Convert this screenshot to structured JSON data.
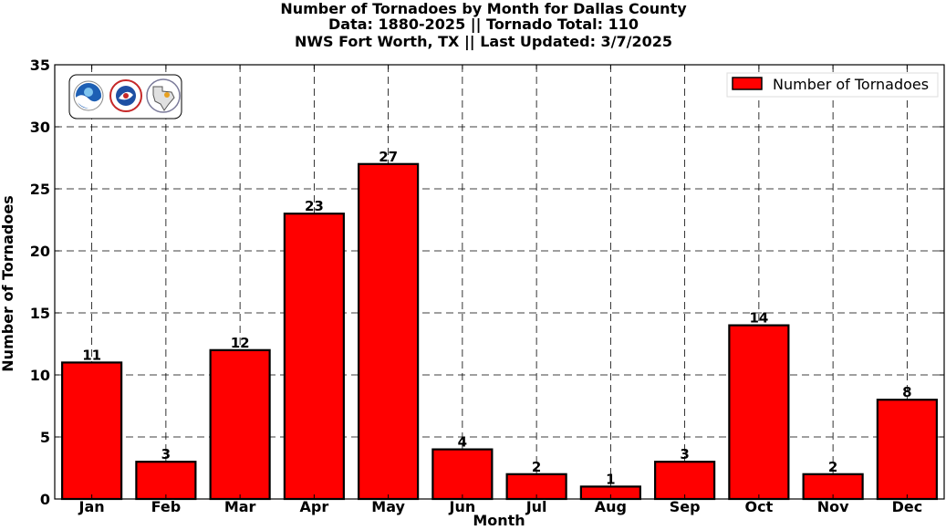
{
  "chart_data": {
    "type": "bar",
    "title": "Number of Tornadoes by Month for Dallas County",
    "subtitle": [
      "Data: 1880-2025 || Tornado Total: 110",
      "NWS Fort Worth, TX || Last Updated: 3/7/2025"
    ],
    "xlabel": "Month",
    "ylabel": "Number of Tornadoes",
    "categories": [
      "Jan",
      "Feb",
      "Mar",
      "Apr",
      "May",
      "Jun",
      "Jul",
      "Aug",
      "Sep",
      "Oct",
      "Nov",
      "Dec"
    ],
    "series": [
      {
        "name": "Number of Tornadoes",
        "values": [
          11,
          3,
          12,
          23,
          27,
          4,
          2,
          1,
          3,
          14,
          2,
          8
        ],
        "color": "#ff0000"
      }
    ],
    "ylim": [
      0,
      35
    ],
    "yticks": [
      0,
      5,
      10,
      15,
      20,
      25,
      30,
      35
    ],
    "grid": true,
    "legend_placement": "top-right",
    "data_labels": true
  },
  "logos": [
    "noaa-logo",
    "nws-logo",
    "nws-fort-worth-logo"
  ]
}
